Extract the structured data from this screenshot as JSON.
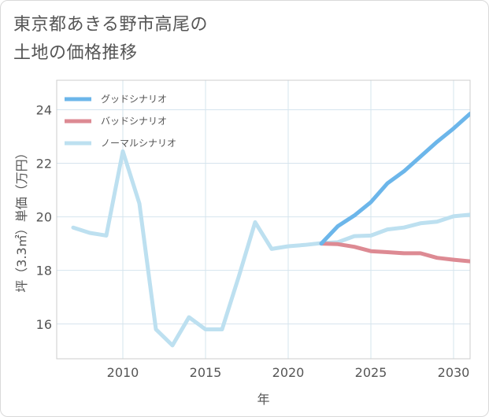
{
  "title_lines": [
    "東京都あきる野市高尾の",
    "土地の価格推移"
  ],
  "chart_data": {
    "type": "line",
    "title": "東京都あきる野市高尾の土地の価格推移",
    "xlabel": "年",
    "ylabel": "坪（3.3㎡）単価（万円）",
    "xlim": [
      2006,
      2031
    ],
    "ylim": [
      14.7,
      25.1
    ],
    "xticks": [
      2010,
      2015,
      2020,
      2025,
      2030
    ],
    "yticks": [
      16,
      18,
      20,
      22,
      24
    ],
    "xtick_labels": [
      "2010",
      "2015",
      "2020",
      "2025",
      "2030"
    ],
    "ytick_labels": [
      "16",
      "18",
      "20",
      "22",
      "24"
    ],
    "grid": true,
    "legend_position": "top-left",
    "series": [
      {
        "name": "グッドシナリオ",
        "color": "#6cb6ea",
        "x": [
          2022,
          2023,
          2024,
          2025,
          2026,
          2027,
          2028,
          2029,
          2030,
          2031
        ],
        "values": [
          19.0,
          19.65,
          20.05,
          20.55,
          21.25,
          21.7,
          22.25,
          22.8,
          23.3,
          23.85
        ]
      },
      {
        "name": "バッドシナリオ",
        "color": "#dd8a93",
        "x": [
          2022,
          2023,
          2024,
          2025,
          2026,
          2027,
          2028,
          2029,
          2030,
          2031
        ],
        "values": [
          19.0,
          18.98,
          18.88,
          18.72,
          18.68,
          18.64,
          18.64,
          18.47,
          18.4,
          18.34
        ]
      },
      {
        "name": "ノーマルシナリオ",
        "color": "#bde0f0",
        "x": [
          2007,
          2008,
          2009,
          2010,
          2011,
          2012,
          2013,
          2014,
          2015,
          2016,
          2017,
          2018,
          2019,
          2020,
          2021,
          2022,
          2023,
          2024,
          2025,
          2026,
          2027,
          2028,
          2029,
          2030,
          2031
        ],
        "values": [
          19.6,
          19.4,
          19.3,
          22.45,
          20.5,
          15.8,
          15.2,
          16.25,
          15.8,
          15.8,
          17.75,
          19.8,
          18.8,
          18.9,
          18.95,
          19.02,
          19.05,
          19.28,
          19.3,
          19.53,
          19.6,
          19.76,
          19.82,
          20.02,
          20.08
        ]
      }
    ]
  }
}
